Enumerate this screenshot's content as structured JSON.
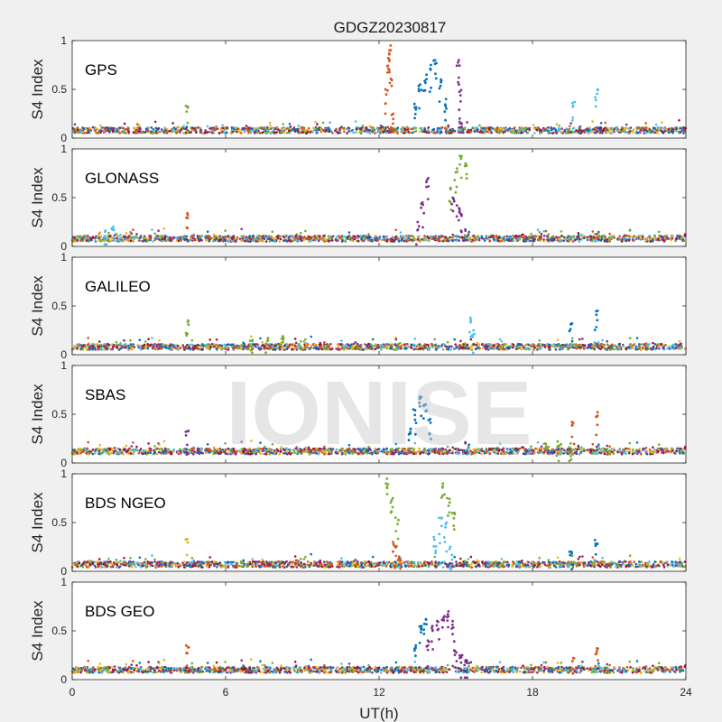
{
  "watermark": "IONISE",
  "chart_data": {
    "type": "scatter",
    "title": "GDGZ20230817",
    "xlabel": "UT(h)",
    "ylabel": "S4 Index",
    "xlim": [
      0,
      24
    ],
    "ylim": [
      0,
      1
    ],
    "xticks": [
      "0",
      "6",
      "12",
      "18",
      "24"
    ],
    "yticks": [
      "0",
      "0.5",
      "1"
    ],
    "grid": false,
    "colors": [
      "#0072BD",
      "#D95319",
      "#EDB120",
      "#7E2F8E",
      "#77AC30",
      "#4DBEEE",
      "#A2142F"
    ],
    "panels": [
      {
        "label": "GPS",
        "baseline": 0.08,
        "events": [
          {
            "series": 1,
            "x": [
              12.3,
              12.35,
              12.4,
              12.45,
              12.5
            ],
            "y": [
              0.5,
              0.82,
              0.95,
              0.7,
              0.25
            ]
          },
          {
            "series": 0,
            "x": [
              13.4,
              13.6,
              13.8,
              14.0,
              14.2,
              14.4,
              14.6
            ],
            "y": [
              0.35,
              0.55,
              0.65,
              0.75,
              0.8,
              0.6,
              0.4
            ]
          },
          {
            "series": 3,
            "x": [
              15.1,
              15.15,
              15.2
            ],
            "y": [
              0.8,
              0.55,
              0.2
            ]
          },
          {
            "series": 5,
            "x": [
              19.6,
              20.5
            ],
            "y": [
              0.37,
              0.5
            ]
          },
          {
            "series": 4,
            "x": [
              4.5
            ],
            "y": [
              0.33
            ]
          }
        ]
      },
      {
        "label": "GLONASS",
        "baseline": 0.08,
        "events": [
          {
            "series": 3,
            "x": [
              13.5,
              13.7,
              13.9
            ],
            "y": [
              0.25,
              0.45,
              0.7
            ]
          },
          {
            "series": 4,
            "x": [
              14.8,
              15.0,
              15.2,
              15.4
            ],
            "y": [
              0.6,
              0.8,
              0.93,
              0.85
            ]
          },
          {
            "series": 3,
            "x": [
              14.9,
              15.1,
              15.2
            ],
            "y": [
              0.5,
              0.42,
              0.35
            ]
          },
          {
            "series": 5,
            "x": [
              1.3,
              1.6
            ],
            "y": [
              0.16,
              0.2
            ]
          },
          {
            "series": 1,
            "x": [
              4.5
            ],
            "y": [
              0.34
            ]
          }
        ]
      },
      {
        "label": "GALILEO",
        "baseline": 0.08,
        "events": [
          {
            "series": 5,
            "x": [
              15.6,
              15.7
            ],
            "y": [
              0.38,
              0.25
            ]
          },
          {
            "series": 0,
            "x": [
              19.5,
              20.5
            ],
            "y": [
              0.32,
              0.45
            ]
          },
          {
            "series": 4,
            "x": [
              4.5
            ],
            "y": [
              0.35
            ]
          },
          {
            "series": 4,
            "x": [
              7.0,
              7.6,
              8.2
            ],
            "y": [
              0.15,
              0.17,
              0.19
            ]
          }
        ]
      },
      {
        "label": "SBAS",
        "baseline": 0.12,
        "events": [
          {
            "series": 0,
            "x": [
              13.2,
              13.4,
              13.6,
              13.8,
              14.0
            ],
            "y": [
              0.35,
              0.55,
              0.68,
              0.6,
              0.45
            ]
          },
          {
            "series": 1,
            "x": [
              19.6,
              20.5
            ],
            "y": [
              0.42,
              0.52
            ]
          },
          {
            "series": 3,
            "x": [
              4.5
            ],
            "y": [
              0.33
            ]
          },
          {
            "series": 4,
            "x": [
              18.5,
              19.0,
              19.5
            ],
            "y": [
              0.2,
              0.22,
              0.2
            ]
          }
        ]
      },
      {
        "label": "BDS NGEO",
        "baseline": 0.07,
        "events": [
          {
            "series": 4,
            "x": [
              12.3,
              12.5,
              12.7
            ],
            "y": [
              0.95,
              0.75,
              0.55
            ]
          },
          {
            "series": 1,
            "x": [
              12.6,
              12.8
            ],
            "y": [
              0.3,
              0.15
            ]
          },
          {
            "series": 5,
            "x": [
              14.2,
              14.4,
              14.6,
              14.8
            ],
            "y": [
              0.35,
              0.55,
              0.5,
              0.25
            ]
          },
          {
            "series": 4,
            "x": [
              14.5,
              14.7,
              14.9
            ],
            "y": [
              0.9,
              0.75,
              0.6
            ]
          },
          {
            "series": 2,
            "x": [
              4.5
            ],
            "y": [
              0.33
            ]
          },
          {
            "series": 0,
            "x": [
              19.5,
              20.5
            ],
            "y": [
              0.2,
              0.32
            ]
          }
        ]
      },
      {
        "label": "BDS GEO",
        "baseline": 0.1,
        "events": [
          {
            "series": 0,
            "x": [
              13.4,
              13.6,
              13.8
            ],
            "y": [
              0.35,
              0.55,
              0.62
            ]
          },
          {
            "series": 3,
            "x": [
              13.9,
              14.1,
              14.3,
              14.5,
              14.7,
              14.9
            ],
            "y": [
              0.4,
              0.55,
              0.6,
              0.65,
              0.7,
              0.6
            ]
          },
          {
            "series": 3,
            "x": [
              15.0,
              15.2,
              15.4
            ],
            "y": [
              0.3,
              0.25,
              0.2
            ]
          },
          {
            "series": 1,
            "x": [
              4.5,
              19.6,
              20.5
            ],
            "y": [
              0.35,
              0.22,
              0.32
            ]
          }
        ]
      }
    ]
  }
}
